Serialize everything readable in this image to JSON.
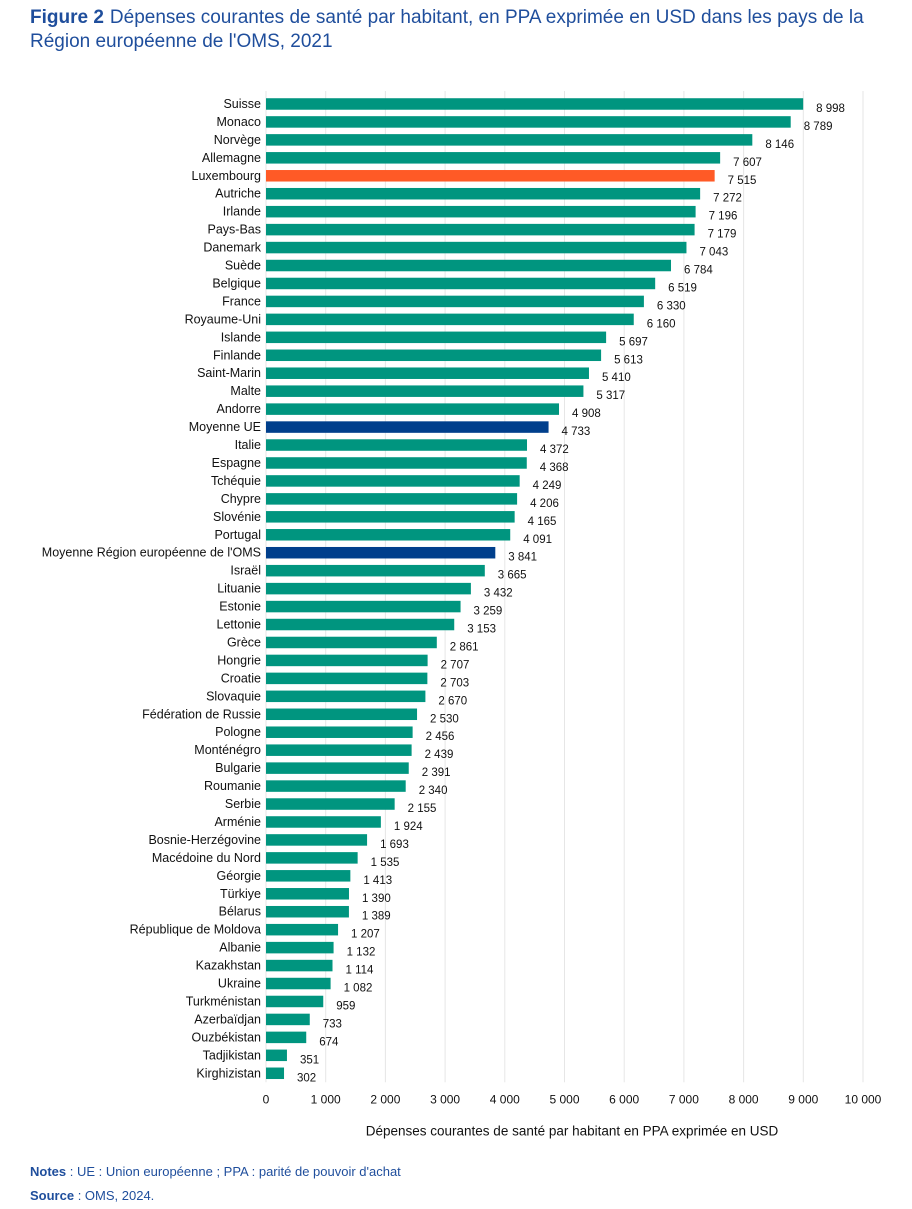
{
  "figure": {
    "label": "Figure 2",
    "title": "Dépenses courantes de santé par habitant, en PPA exprimée en USD dans les pays de la Région européenne de l'OMS, 2021"
  },
  "notes": {
    "notes_label": "Notes",
    "notes_text": " : UE : Union européenne ; PPA : parité de pouvoir d'achat",
    "source_label": "Source",
    "source_text": " : OMS, 2024."
  },
  "colors": {
    "default_bar": "#00957f",
    "highlight_bar": "#ff5a26",
    "average_bar": "#003f8c",
    "grid": "#e6e6e6",
    "text": "#111111"
  },
  "chart_data": {
    "type": "bar",
    "orientation": "horizontal",
    "xlabel": "Dépenses courantes de santé par habitant en PPA exprimée en USD",
    "xlim": [
      0,
      10000
    ],
    "xticks": [
      0,
      1000,
      2000,
      3000,
      4000,
      5000,
      6000,
      7000,
      8000,
      9000,
      10000
    ],
    "xtick_labels": [
      "0",
      "1 000",
      "2 000",
      "3 000",
      "4 000",
      "5 000",
      "6 000",
      "7 000",
      "8 000",
      "9 000",
      "10 000"
    ],
    "grid": "vertical",
    "categories": [
      "Suisse",
      "Monaco",
      "Norvège",
      "Allemagne",
      "Luxembourg",
      "Autriche",
      "Irlande",
      "Pays-Bas",
      "Danemark",
      "Suède",
      "Belgique",
      "France",
      "Royaume-Uni",
      "Islande",
      "Finlande",
      "Saint-Marin",
      "Malte",
      "Andorre",
      "Moyenne UE",
      "Italie",
      "Espagne",
      "Tchéquie",
      "Chypre",
      "Slovénie",
      "Portugal",
      "Moyenne Région européenne de l'OMS",
      "Israël",
      "Lituanie",
      "Estonie",
      "Lettonie",
      "Grèce",
      "Hongrie",
      "Croatie",
      "Slovaquie",
      "Fédération de Russie",
      "Pologne",
      "Monténégro",
      "Bulgarie",
      "Roumanie",
      "Serbie",
      "Arménie",
      "Bosnie-Herzégovine",
      "Macédoine du Nord",
      "Géorgie",
      "Türkiye",
      "Bélarus",
      "République de Moldova",
      "Albanie",
      "Kazakhstan",
      "Ukraine",
      "Turkménistan",
      "Azerbaïdjan",
      "Ouzbékistan",
      "Tadjikistan",
      "Kirghizistan"
    ],
    "values": [
      8998,
      8789,
      8146,
      7607,
      7515,
      7272,
      7196,
      7179,
      7043,
      6784,
      6519,
      6330,
      6160,
      5697,
      5613,
      5410,
      5317,
      4908,
      4733,
      4372,
      4368,
      4249,
      4206,
      4165,
      4091,
      3841,
      3665,
      3432,
      3259,
      3153,
      2861,
      2707,
      2703,
      2670,
      2530,
      2456,
      2439,
      2391,
      2340,
      2155,
      1924,
      1693,
      1535,
      1413,
      1390,
      1389,
      1207,
      1132,
      1114,
      1082,
      959,
      733,
      674,
      351,
      302
    ],
    "value_labels": [
      "8 998",
      "8 789",
      "8 146",
      "7 607",
      "7 515",
      "7 272",
      "7 196",
      "7 179",
      "7 043",
      "6 784",
      "6 519",
      "6 330",
      "6 160",
      "5 697",
      "5 613",
      "5 410",
      "5 317",
      "4 908",
      "4 733",
      "4 372",
      "4 368",
      "4 249",
      "4 206",
      "4 165",
      "4 091",
      "3 841",
      "3 665",
      "3 432",
      "3 259",
      "3 153",
      "2 861",
      "2 707",
      "2 703",
      "2 670",
      "2 530",
      "2 456",
      "2 439",
      "2 391",
      "2 340",
      "2 155",
      "1 924",
      "1 693",
      "1 535",
      "1 413",
      "1 390",
      "1 389",
      "1 207",
      "1 132",
      "1 114",
      "1 082",
      "959",
      "733",
      "674",
      "351",
      "302"
    ],
    "highlight": {
      "Luxembourg": "highlight_bar",
      "Moyenne UE": "average_bar",
      "Moyenne Région européenne de l'OMS": "average_bar"
    }
  }
}
